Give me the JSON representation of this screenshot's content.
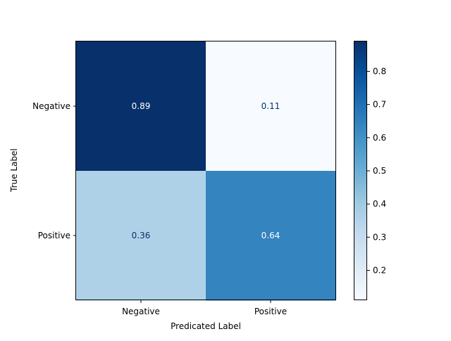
{
  "chart_data": {
    "type": "heatmap",
    "title": "",
    "xlabel": "Predicated Label",
    "ylabel": "True Label",
    "x_categories": [
      "Negative",
      "Positive"
    ],
    "y_categories": [
      "Negative",
      "Positive"
    ],
    "values": [
      [
        0.89,
        0.11
      ],
      [
        0.36,
        0.64
      ]
    ],
    "cell_labels": [
      [
        "0.89",
        "0.11"
      ],
      [
        "0.36",
        "0.64"
      ]
    ],
    "colormap": "Blues",
    "colorbar": {
      "range": [
        0.11,
        0.89
      ],
      "ticks": [
        0.2,
        0.3,
        0.4,
        0.5,
        0.6,
        0.7,
        0.8
      ],
      "tick_labels": [
        "0.2",
        "0.3",
        "0.4",
        "0.5",
        "0.6",
        "0.7",
        "0.8"
      ]
    },
    "colors": {
      "dark_text": "#08306b",
      "light_text": "#ffffff"
    }
  }
}
